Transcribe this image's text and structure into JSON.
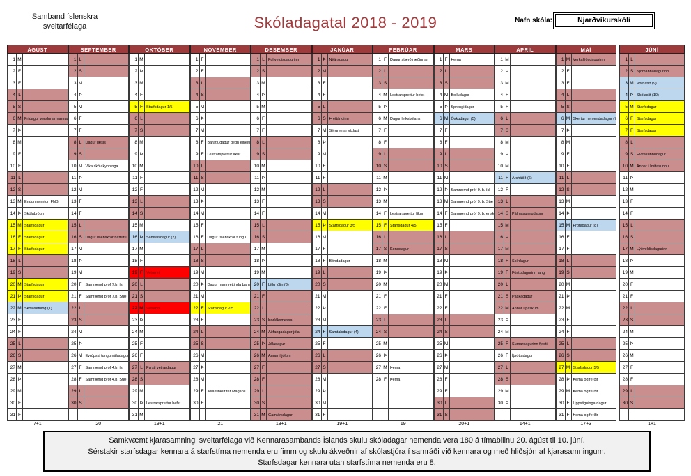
{
  "header": {
    "org_line1": "Samband íslenskra",
    "org_line2": "sveitarfélaga",
    "title": "Skóladagatal 2018 - 2019",
    "school_label": "Nafn skóla:",
    "school_name": "Njarðvíkurskóli"
  },
  "colors": {
    "maroon_header": "#9c3a3c",
    "pink": "#cb8e8e",
    "yellow": "#ffff00",
    "blue": "#bdd7ee",
    "red": "#ff0000",
    "title_text": "#a23b3d"
  },
  "calendar": {
    "weekday_letters": [
      "M",
      "Þ",
      "M",
      "F",
      "F",
      "L",
      "S"
    ],
    "months": [
      {
        "name": "ÁGÚST",
        "days": 31,
        "first": 2,
        "total": "7+1",
        "events": [
          {
            "d": 6,
            "t": "Frídagur verslunarmanna",
            "c": "pink"
          },
          {
            "d": 13,
            "t": "Endurmenntun FNB"
          },
          {
            "d": 14,
            "t": "Skólaþróun"
          },
          {
            "d": 15,
            "t": "Starfsdagur",
            "c": "yellow"
          },
          {
            "d": 16,
            "t": "Starfsdagur",
            "c": "yellow"
          },
          {
            "d": 17,
            "t": "Starfsdagur",
            "c": "yellow"
          },
          {
            "d": 20,
            "t": "Starfsdagur",
            "c": "yellow"
          },
          {
            "d": 21,
            "t": "Starfsdagur",
            "c": "yellow"
          },
          {
            "d": 22,
            "t": "Skólasetning (1)",
            "c": "blue"
          }
        ]
      },
      {
        "name": "SEPTEMBER",
        "days": 30,
        "first": 5,
        "total": "20",
        "events": [
          {
            "d": 8,
            "t": "Dagur læsis"
          },
          {
            "d": 10,
            "t": "Vika skólakynninga"
          },
          {
            "d": 16,
            "t": "Dagur íslenskrar náttúru"
          },
          {
            "d": 20,
            "t": "Samræmd próf 7.b. ísl"
          },
          {
            "d": 21,
            "t": "Samræmd próf 7.b. Stæ"
          },
          {
            "d": 26,
            "t": "Evrópski tungumáladagurinn"
          },
          {
            "d": 27,
            "t": "Samræmd próf 4.b. ísl"
          },
          {
            "d": 28,
            "t": "Samræmd próf 4.b. Stæ"
          }
        ]
      },
      {
        "name": "OKTÓBER",
        "days": 31,
        "first": 0,
        "total": "19+1",
        "events": [
          {
            "d": 5,
            "t": "Starfsdagur 1/5",
            "c": "yellow"
          },
          {
            "d": 16,
            "t": "Samtalsdagur (2)",
            "c": "blue"
          },
          {
            "d": 19,
            "t": "Vetrarfrí",
            "c": "red"
          },
          {
            "d": 22,
            "t": "Vetrarfrí",
            "c": "red"
          },
          {
            "d": 27,
            "t": "Fyrsti vetrardagur"
          },
          {
            "d": 30,
            "t": "Lestrarsprettur hefst"
          }
        ]
      },
      {
        "name": "NÓVEMBER",
        "days": 30,
        "first": 3,
        "total": "21",
        "events": [
          {
            "d": 8,
            "t": "Baráttudagur gegn einelti"
          },
          {
            "d": 9,
            "t": "Lestrarsprettur líkur"
          },
          {
            "d": 16,
            "t": "Dagur íslenskrar tungu"
          },
          {
            "d": 20,
            "t": "Dagur mannréttinda barna"
          },
          {
            "d": 22,
            "t": "Starfsdagur 2/5",
            "c": "yellow"
          },
          {
            "d": 29,
            "t": "Jólaklinkur fer Mágans"
          }
        ]
      },
      {
        "name": "DESEMBER",
        "days": 31,
        "first": 5,
        "total": "13+1",
        "events": [
          {
            "d": 1,
            "t": "Fullveldisdagurinn"
          },
          {
            "d": 20,
            "t": "Litlu jólin (3)",
            "c": "blue"
          },
          {
            "d": 21,
            "t": "",
            "c": "pink"
          },
          {
            "d": 23,
            "t": "Þorláksmessa"
          },
          {
            "d": 24,
            "t": "Aðfangadagur jóla",
            "c": "pink"
          },
          {
            "d": 25,
            "t": "Jóladagur",
            "c": "pink"
          },
          {
            "d": 26,
            "t": "Annar í jólum",
            "c": "pink"
          },
          {
            "d": 27,
            "t": "",
            "c": "pink"
          },
          {
            "d": 28,
            "t": "",
            "c": "pink"
          },
          {
            "d": 31,
            "t": "Gamlársdagur",
            "c": "pink"
          }
        ]
      },
      {
        "name": "JANÚAR",
        "days": 31,
        "first": 1,
        "total": "19+1",
        "events": [
          {
            "d": 1,
            "t": "Nýársdagur",
            "c": "pink"
          },
          {
            "d": 2,
            "t": "",
            "c": "pink"
          },
          {
            "d": 6,
            "t": "Þrettándinn"
          },
          {
            "d": 7,
            "t": "Sérgreinar víxlast"
          },
          {
            "d": 15,
            "t": "Starfsdagur 3/5",
            "c": "yellow"
          },
          {
            "d": 18,
            "t": "Bóndadagur"
          },
          {
            "d": 24,
            "t": "Samtalsdagur (4)",
            "c": "blue"
          }
        ]
      },
      {
        "name": "FEBRÚAR",
        "days": 28,
        "first": 4,
        "total": "19",
        "events": [
          {
            "d": 1,
            "t": "Dagur stærðfræðinnar"
          },
          {
            "d": 4,
            "t": "Lestrarsprettur hefst"
          },
          {
            "d": 6,
            "t": "Dagur leikskólans"
          },
          {
            "d": 14,
            "t": "Lestrarsprettur líkur"
          },
          {
            "d": 15,
            "t": "Starfsdagur 4/5",
            "c": "yellow"
          },
          {
            "d": 17,
            "t": "Konudagur"
          },
          {
            "d": 27,
            "t": "Þema"
          },
          {
            "d": 28,
            "t": "Þema"
          }
        ]
      },
      {
        "name": "MARS",
        "days": 31,
        "first": 4,
        "total": "20+1",
        "events": [
          {
            "d": 1,
            "t": "Þema"
          },
          {
            "d": 4,
            "t": "Bolludagur"
          },
          {
            "d": 5,
            "t": "Sprengidagur"
          },
          {
            "d": 6,
            "t": "Öskudagur (5)",
            "c": "blue"
          },
          {
            "d": 12,
            "t": "Samræmd próf 9. b. ísl"
          },
          {
            "d": 13,
            "t": "Samræmd próf 9. b. Stæ"
          },
          {
            "d": 14,
            "t": "Samræmd próf 9. b. enska"
          }
        ]
      },
      {
        "name": "APRÍL",
        "days": 30,
        "first": 0,
        "total": "14+1",
        "events": [
          {
            "d": 11,
            "t": "Árshátíð (6)",
            "c": "blue"
          },
          {
            "d": 14,
            "t": "Pálmasunnudagur"
          },
          {
            "d": 15,
            "t": "",
            "c": "pink"
          },
          {
            "d": 16,
            "t": "",
            "c": "pink"
          },
          {
            "d": 17,
            "t": "",
            "c": "pink"
          },
          {
            "d": 18,
            "t": "Skírdagur",
            "c": "pink"
          },
          {
            "d": 19,
            "t": "Föstudagurinn langi",
            "c": "pink"
          },
          {
            "d": 21,
            "t": "Páskadagur"
          },
          {
            "d": 22,
            "t": "Annar í páskum",
            "c": "pink"
          },
          {
            "d": 25,
            "t": "Sumardagurinn fyrsti",
            "c": "pink"
          },
          {
            "d": 26,
            "t": "Íþróttadagur"
          }
        ]
      },
      {
        "name": "MAÍ",
        "days": 31,
        "first": 2,
        "total": "17+3",
        "events": [
          {
            "d": 1,
            "t": "Verkalýðsdagurinn",
            "c": "pink"
          },
          {
            "d": 6,
            "t": "Skertur nemendadagur (7)",
            "c": "blue"
          },
          {
            "d": 15,
            "t": "Prófadagur (8)",
            "c": "blue"
          },
          {
            "d": 27,
            "t": "Starfsdagur 5/5",
            "c": "yellow"
          },
          {
            "d": 28,
            "t": "Þema og ferðir"
          },
          {
            "d": 29,
            "t": "Þema og ferðir"
          },
          {
            "d": 30,
            "t": "Uppstigningardagur"
          },
          {
            "d": 31,
            "t": "Þema og ferðir"
          }
        ]
      },
      {
        "name": "JÚNÍ",
        "days": 30,
        "first": 5,
        "total": "1+1",
        "events": [
          {
            "d": 2,
            "t": "Sjómannadagurinn"
          },
          {
            "d": 3,
            "t": "Vorhátíð (9)",
            "c": "blue"
          },
          {
            "d": 4,
            "t": "Skólaslit (10)",
            "c": "blue"
          },
          {
            "d": 5,
            "t": "Starfsdagur",
            "c": "yellow"
          },
          {
            "d": 6,
            "t": "Starfsdagur",
            "c": "yellow"
          },
          {
            "d": 7,
            "t": "Starfsdagur",
            "c": "yellow"
          },
          {
            "d": 9,
            "t": "Hvítasunnudagur"
          },
          {
            "d": 10,
            "t": "Annar í hvítasunnu",
            "c": "pink"
          },
          {
            "d": 17,
            "t": "Lýðveldisdagurinn",
            "c": "pink"
          }
        ]
      }
    ]
  },
  "footer": {
    "line1": "Samkvæmt kjarasamningi sveitarfélaga við Kennarasambands Íslands skulu skóladagar nemenda vera 180 á tímabilinu 20. ágúst til 10. júní.",
    "line2": "Sérstakir starfsdagar kennara á starfstíma nemenda eru fimm og skulu ákveðnir af skólastjóra í samráði við kennara og með hliðsjón af kjarasamningum.",
    "line3": "Starfsdagar kennara utan starfstíma nemenda eru 8."
  }
}
